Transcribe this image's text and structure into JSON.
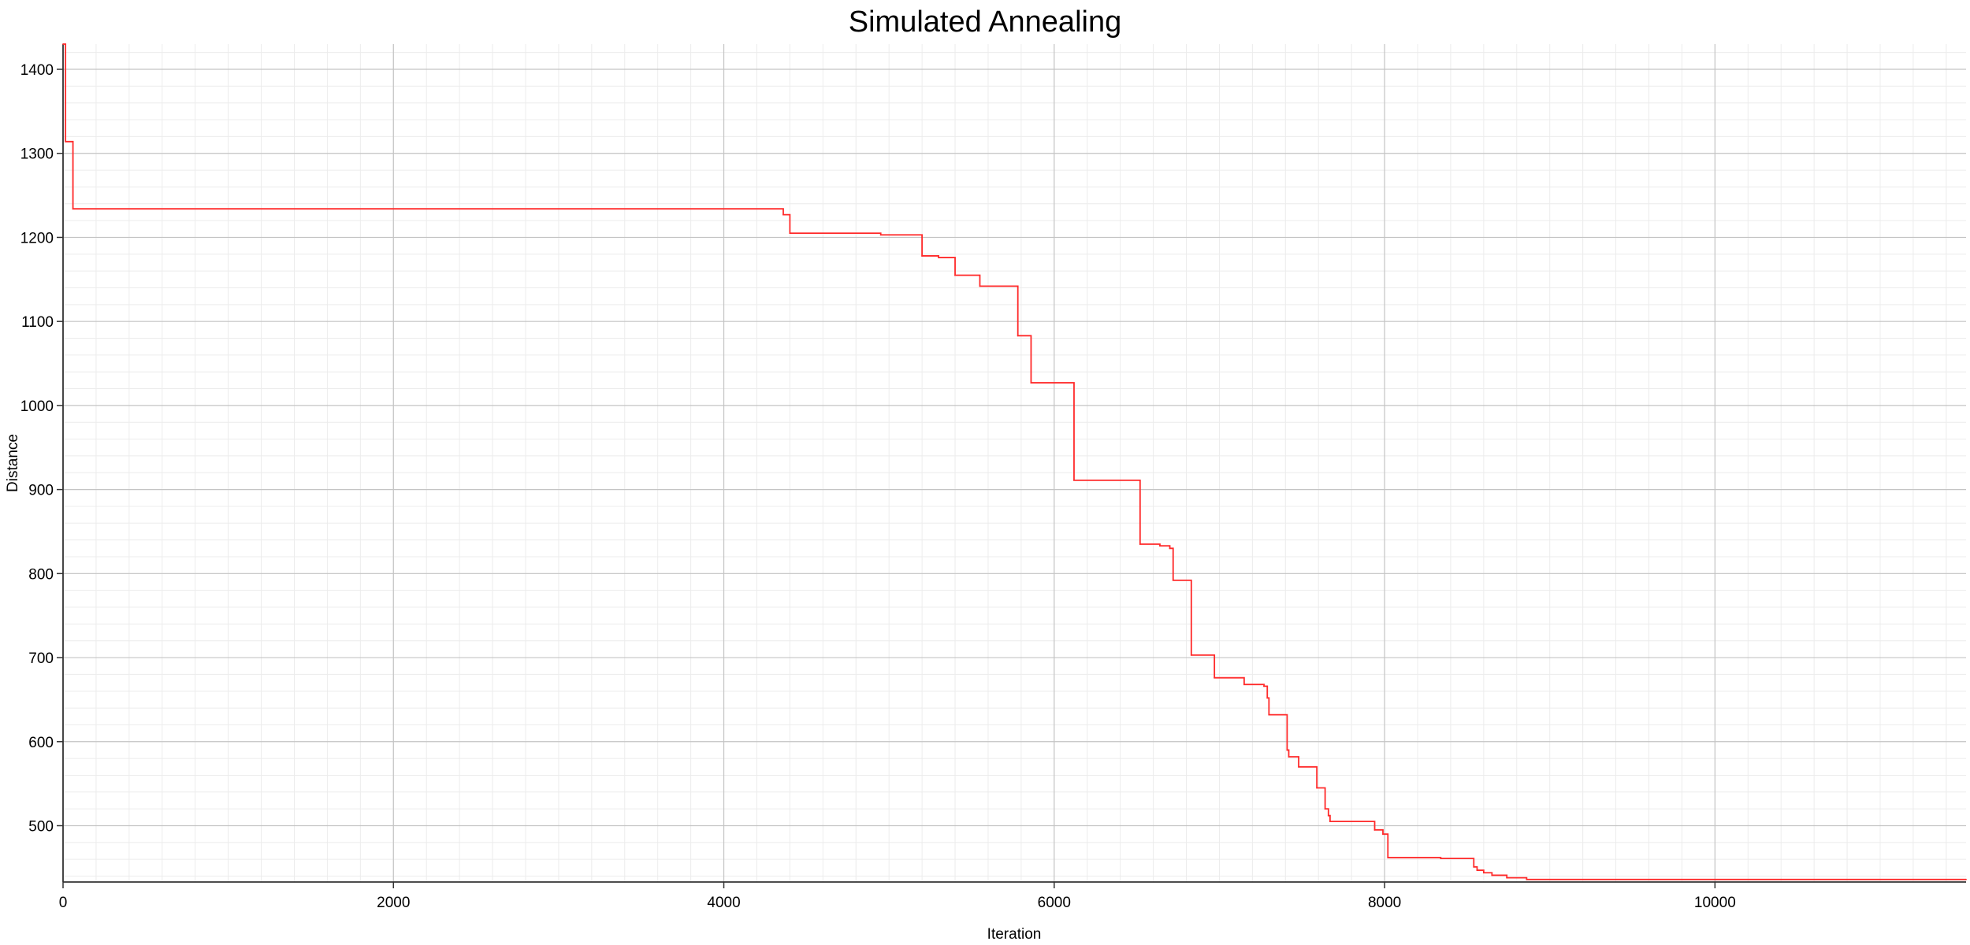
{
  "chart_data": {
    "type": "line",
    "title": "Simulated Annealing",
    "xlabel": "Iteration",
    "ylabel": "Distance",
    "xlim": [
      0,
      11520
    ],
    "ylim": [
      433,
      1430
    ],
    "x_ticks": [
      0,
      2000,
      4000,
      6000,
      8000,
      10000
    ],
    "y_ticks": [
      500,
      600,
      700,
      800,
      900,
      1000,
      1100,
      1200,
      1300,
      1400
    ],
    "x_minor_step": 200,
    "y_minor_step": 20,
    "grid": true,
    "legend": "none",
    "series": [
      {
        "step": true,
        "color": "#ff2a2a",
        "x": [
          0,
          15,
          60,
          4360,
          4400,
          4950,
          5200,
          5300,
          5400,
          5550,
          5780,
          5860,
          6120,
          6520,
          6640,
          6700,
          6720,
          6830,
          6970,
          7150,
          7270,
          7290,
          7300,
          7410,
          7420,
          7480,
          7590,
          7640,
          7660,
          7670,
          7940,
          7990,
          8020,
          8340,
          8540,
          8560,
          8600,
          8650,
          8740,
          8860,
          11520
        ],
        "y": [
          1430,
          1314,
          1234,
          1227,
          1205,
          1203,
          1178,
          1176,
          1155,
          1142,
          1083,
          1027,
          911,
          835,
          833,
          830,
          792,
          703,
          676,
          668,
          666,
          652,
          632,
          590,
          582,
          570,
          545,
          520,
          512,
          505,
          495,
          490,
          462,
          461,
          451,
          447,
          444,
          441,
          438,
          436,
          436
        ]
      }
    ]
  }
}
